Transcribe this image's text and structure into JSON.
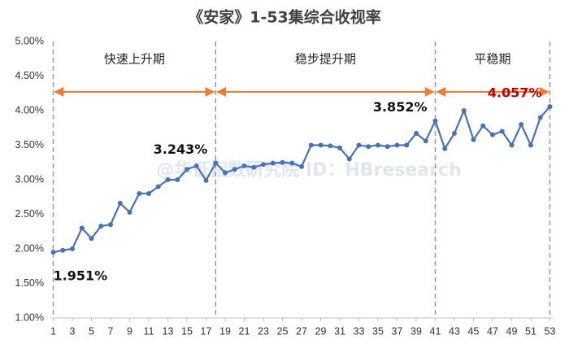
{
  "chart_data": {
    "type": "line",
    "title": "《安家》1-53集综合收视率",
    "watermark": "@华证指数研究院 ID：HBresearch",
    "x": [
      1,
      2,
      3,
      4,
      5,
      6,
      7,
      8,
      9,
      10,
      11,
      12,
      13,
      14,
      15,
      16,
      17,
      18,
      19,
      20,
      21,
      22,
      23,
      24,
      25,
      26,
      27,
      28,
      29,
      30,
      31,
      32,
      33,
      34,
      35,
      36,
      37,
      38,
      39,
      40,
      41,
      42,
      43,
      44,
      45,
      46,
      47,
      48,
      49,
      50,
      51,
      52,
      53
    ],
    "xlim": [
      0.7,
      53.3
    ],
    "xticks": [
      1,
      3,
      5,
      7,
      9,
      11,
      13,
      15,
      17,
      19,
      21,
      23,
      25,
      27,
      29,
      31,
      33,
      35,
      37,
      39,
      41,
      43,
      45,
      47,
      49,
      51,
      53
    ],
    "ylim": [
      1,
      5
    ],
    "yticks": [
      {
        "value": 1,
        "label": "1.00%"
      },
      {
        "value": 1.5,
        "label": "1.50%"
      },
      {
        "value": 2,
        "label": "2.00%"
      },
      {
        "value": 2.5,
        "label": "2.50%"
      },
      {
        "value": 3,
        "label": "3.00%"
      },
      {
        "value": 3.5,
        "label": "3.50%"
      },
      {
        "value": 4,
        "label": "4.00%"
      },
      {
        "value": 4.5,
        "label": "4.50%"
      },
      {
        "value": 5,
        "label": "5.00%"
      }
    ],
    "grid": false,
    "series": [
      {
        "color": "#4a72b0",
        "values": [
          1.951,
          1.98,
          2.0,
          2.3,
          2.15,
          2.33,
          2.35,
          2.66,
          2.53,
          2.8,
          2.8,
          2.9,
          3.0,
          3.0,
          3.15,
          3.2,
          2.99,
          3.243,
          3.1,
          3.15,
          3.2,
          3.18,
          3.22,
          3.24,
          3.25,
          3.24,
          3.19,
          3.5,
          3.5,
          3.49,
          3.46,
          3.3,
          3.5,
          3.48,
          3.5,
          3.48,
          3.5,
          3.5,
          3.67,
          3.56,
          3.852,
          3.45,
          3.67,
          4.0,
          3.58,
          3.78,
          3.65,
          3.7,
          3.5,
          3.8,
          3.5,
          3.9,
          4.057
        ]
      }
    ],
    "annotations": [
      {
        "text": "1.951%",
        "x": 1,
        "color": "#111111"
      },
      {
        "text": "3.243%",
        "x": 18,
        "color": "#111111"
      },
      {
        "text": "3.852%",
        "x": 41,
        "color": "#111111"
      },
      {
        "text": "4.057%",
        "x": 53,
        "color": "#c00000"
      }
    ],
    "phases": [
      {
        "label": "快速上升期",
        "start": 1,
        "end": 18
      },
      {
        "label": "稳步提升期",
        "start": 18,
        "end": 41
      },
      {
        "label": "平稳期",
        "start": 41,
        "end": 53
      }
    ],
    "phase_color": "#ed7d31"
  }
}
